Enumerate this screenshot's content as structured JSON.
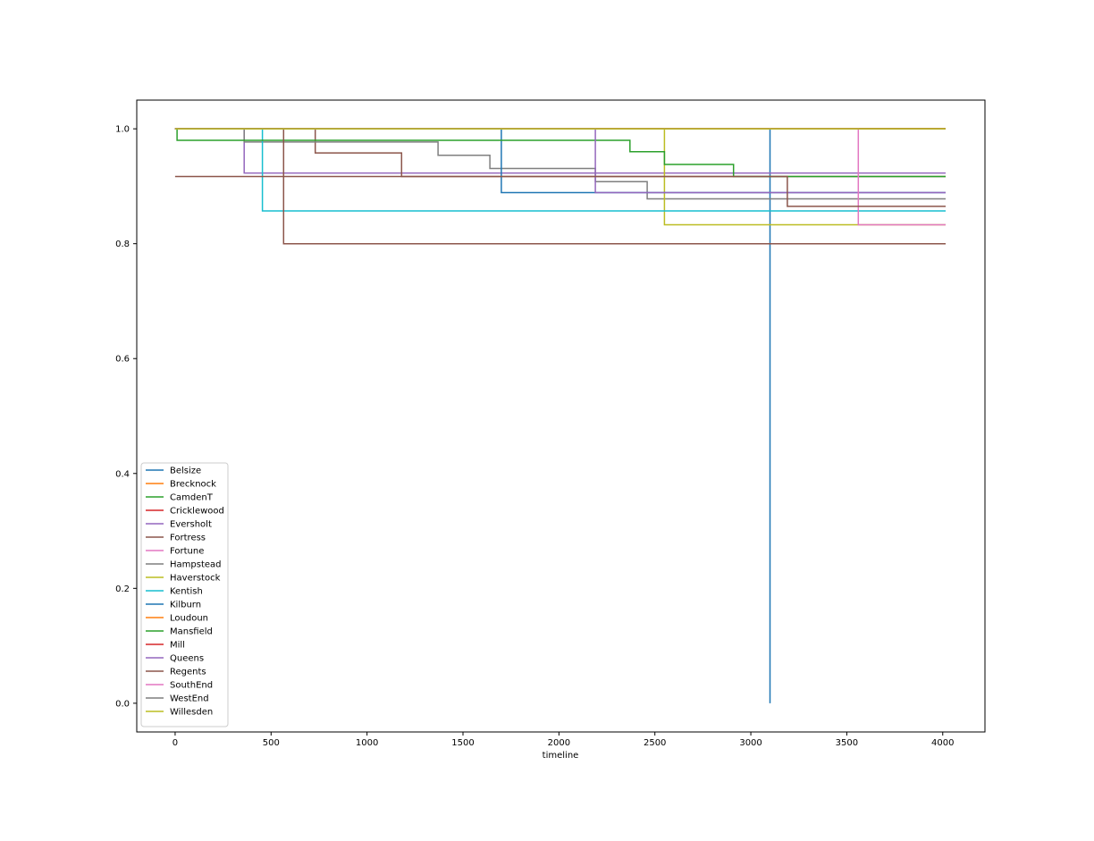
{
  "chart_data": {
    "type": "line",
    "title": "",
    "xlabel": "timeline",
    "ylabel": "",
    "xlim": [
      -200,
      4220
    ],
    "ylim": [
      -0.05,
      1.05
    ],
    "x_ticks": [
      0,
      500,
      1000,
      1500,
      2000,
      2500,
      3000,
      3500,
      4000
    ],
    "x_tick_labels": [
      "0",
      "500",
      "1000",
      "1500",
      "2000",
      "2500",
      "3000",
      "3500",
      "4000"
    ],
    "y_ticks": [
      0.0,
      0.2,
      0.4,
      0.6,
      0.8,
      1.0
    ],
    "y_tick_labels": [
      "0.0",
      "0.2",
      "0.4",
      "0.6",
      "0.8",
      "1.0"
    ],
    "grid": false,
    "legend_position": "lower-left",
    "series": [
      {
        "name": "Belsize",
        "color": "#1f77b4",
        "x": [
          0,
          3100,
          3100,
          3100,
          3100,
          4015
        ],
        "y": [
          1.0,
          1.0,
          0.0,
          0.0,
          1.0,
          1.0
        ]
      },
      {
        "name": "Brecknock",
        "color": "#ff7f0e",
        "x": [
          0,
          4015
        ],
        "y": [
          1.0,
          1.0
        ]
      },
      {
        "name": "CamdenT",
        "color": "#2ca02c",
        "x": [
          0,
          4015
        ],
        "y": [
          1.0,
          1.0
        ]
      },
      {
        "name": "Cricklewood",
        "color": "#d62728",
        "x": [
          0,
          4015
        ],
        "y": [
          1.0,
          1.0
        ]
      },
      {
        "name": "Eversholt",
        "color": "#9467bd",
        "x": [
          0,
          360,
          360,
          4015
        ],
        "y": [
          1.0,
          1.0,
          0.923,
          0.923
        ]
      },
      {
        "name": "Fortress",
        "color": "#8c564b",
        "x": [
          0,
          730,
          730,
          1180,
          1180,
          4015
        ],
        "y": [
          1.0,
          1.0,
          0.958,
          0.958,
          0.917,
          0.917
        ]
      },
      {
        "name": "Fortune",
        "color": "#e377c2",
        "x": [
          0,
          4015
        ],
        "y": [
          1.0,
          1.0
        ]
      },
      {
        "name": "Hampstead",
        "color": "#7f7f7f",
        "x": [
          0,
          360,
          360,
          1370,
          1370,
          1640,
          1640,
          2190,
          2190,
          2460,
          2460,
          4015
        ],
        "y": [
          1.0,
          1.0,
          0.977,
          0.977,
          0.954,
          0.954,
          0.931,
          0.931,
          0.908,
          0.908,
          0.878,
          0.878
        ]
      },
      {
        "name": "Haverstock",
        "color": "#bcbd22",
        "x": [
          0,
          2550,
          2550,
          4015
        ],
        "y": [
          1.0,
          1.0,
          0.833,
          0.833
        ]
      },
      {
        "name": "Kentish",
        "color": "#17becf",
        "x": [
          0,
          455,
          455,
          4015
        ],
        "y": [
          1.0,
          1.0,
          0.857,
          0.857
        ]
      },
      {
        "name": "Kilburn",
        "color": "#1f77b4",
        "x": [
          0,
          1700,
          1700,
          4015
        ],
        "y": [
          1.0,
          1.0,
          0.889,
          0.889
        ]
      },
      {
        "name": "Loudoun",
        "color": "#ff7f0e",
        "x": [
          0,
          4015
        ],
        "y": [
          1.0,
          1.0
        ]
      },
      {
        "name": "Mansfield",
        "color": "#2ca02c",
        "x": [
          0,
          10,
          10,
          2370,
          2370,
          2550,
          2550,
          2910,
          2910,
          4015
        ],
        "y": [
          1.0,
          1.0,
          0.98,
          0.98,
          0.96,
          0.96,
          0.938,
          0.938,
          0.917,
          0.917
        ]
      },
      {
        "name": "Mill",
        "color": "#d62728",
        "x": [
          0,
          4015
        ],
        "y": [
          1.0,
          1.0
        ]
      },
      {
        "name": "Queens",
        "color": "#9467bd",
        "x": [
          0,
          2190,
          2190,
          4015
        ],
        "y": [
          1.0,
          1.0,
          0.889,
          0.889
        ]
      },
      {
        "name": "Regents",
        "color": "#8c564b",
        "x": [
          0,
          565,
          565,
          4015
        ],
        "y": [
          1.0,
          1.0,
          0.8,
          0.8
        ]
      },
      {
        "name": "SouthEnd",
        "color": "#e377c2",
        "x": [
          0,
          3560,
          3560,
          4015
        ],
        "y": [
          1.0,
          1.0,
          0.833,
          0.833
        ]
      },
      {
        "name": "WestEnd",
        "color": "#7f7f7f",
        "x": [
          0,
          4015
        ],
        "y": [
          1.0,
          1.0
        ]
      },
      {
        "name": "Willesden",
        "color": "#bcbd22",
        "x": [
          0,
          4015
        ],
        "y": [
          1.0,
          1.0
        ]
      },
      {
        "name": "",
        "color": "#8c564b",
        "x": [
          0,
          3190,
          3190,
          4015
        ],
        "y": [
          0.917,
          0.917,
          0.865,
          0.865
        ]
      }
    ]
  }
}
